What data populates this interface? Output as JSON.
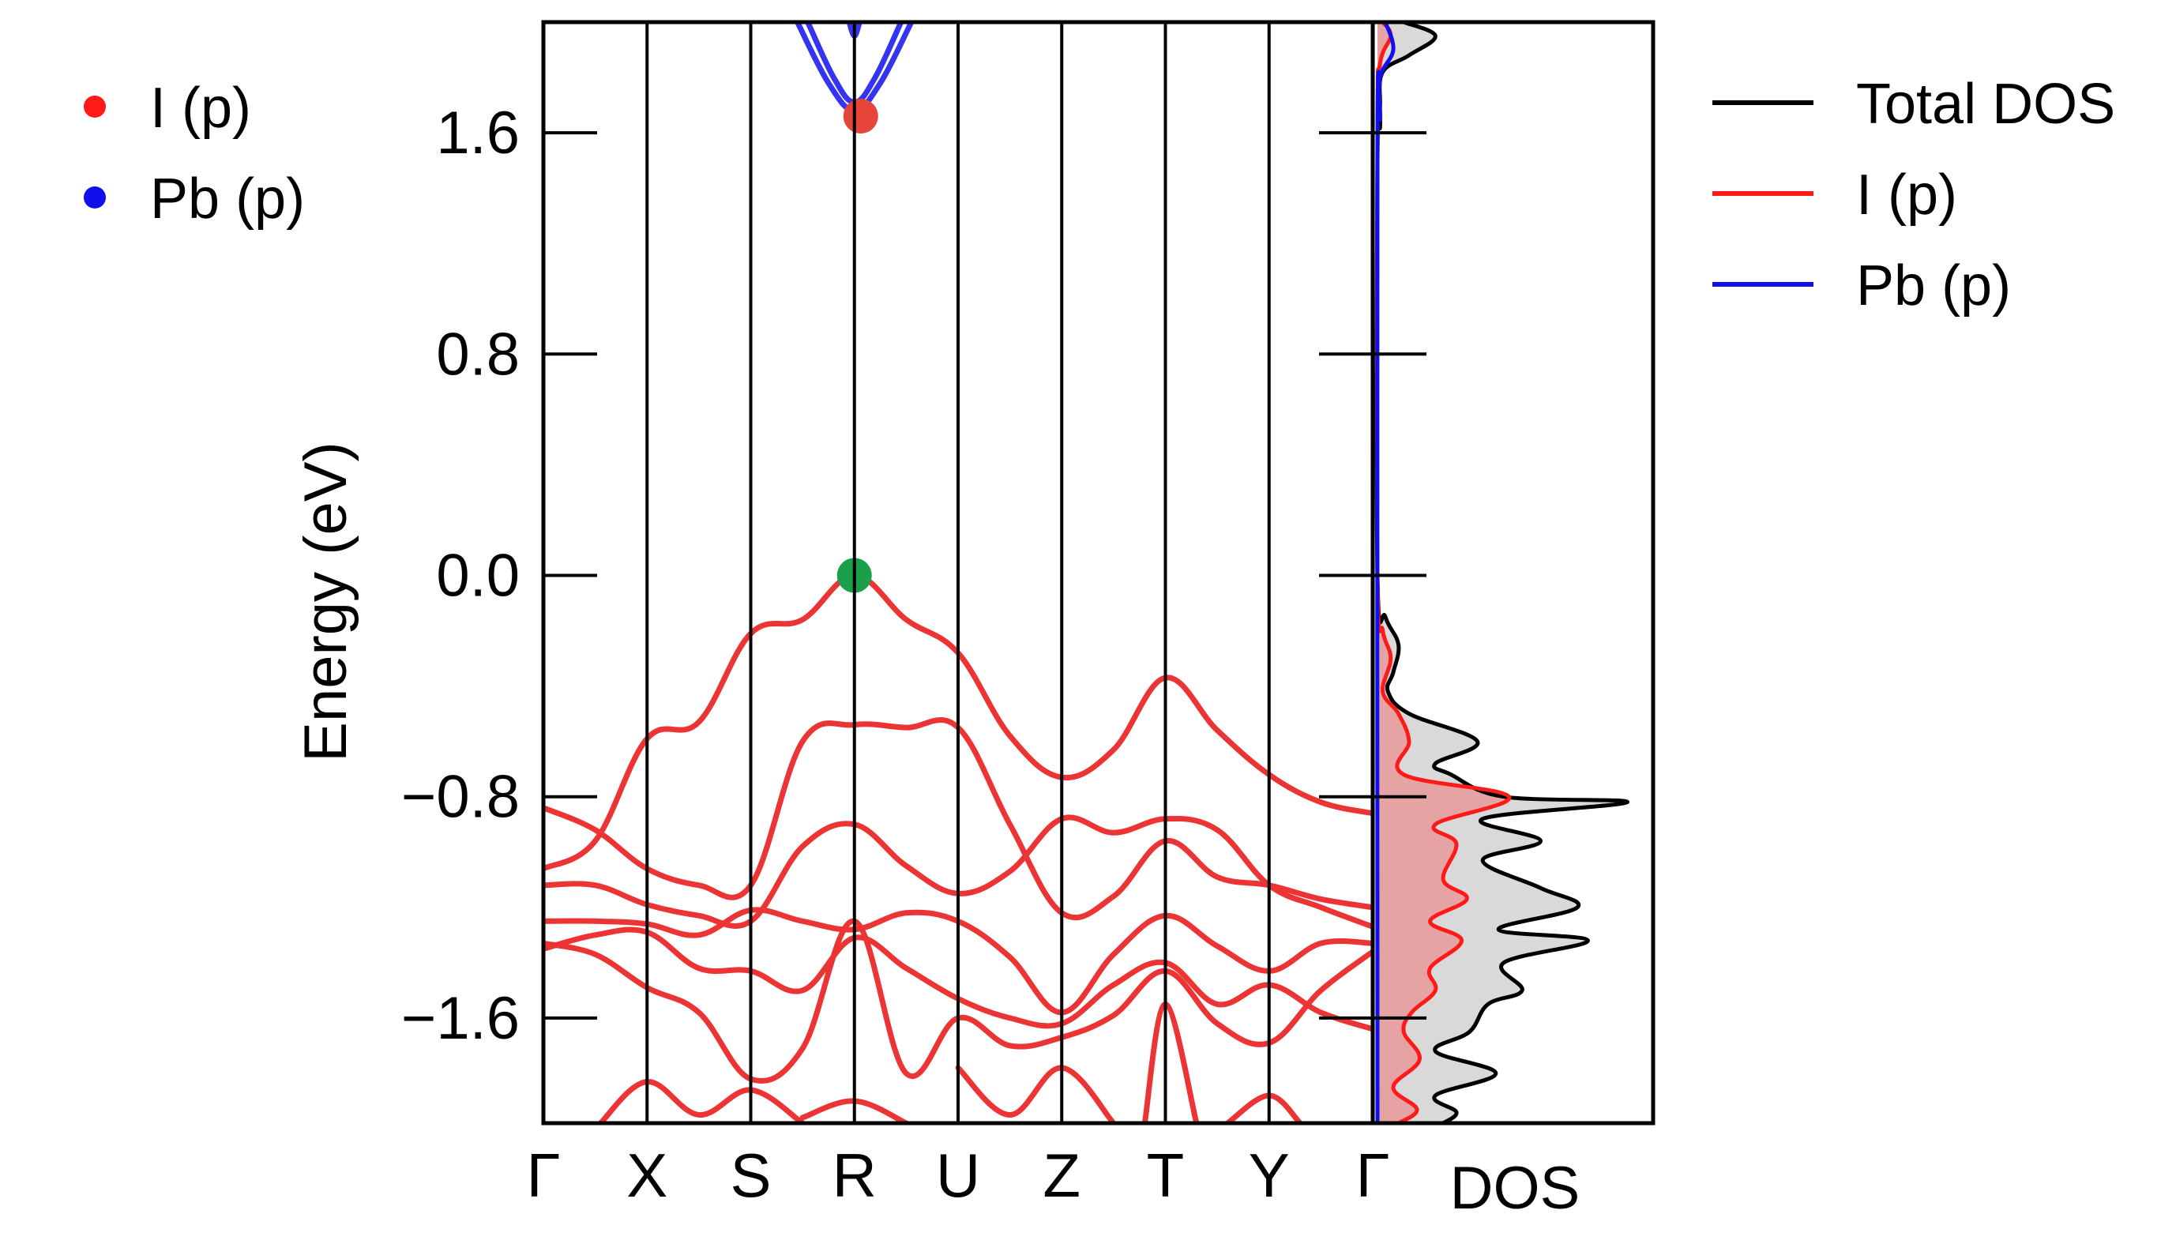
{
  "figure": {
    "ylabel": "Energy (eV)",
    "dos_label": "DOS"
  },
  "colors": {
    "i_p": "#ff1a1a",
    "pb_p": "#1010ee",
    "total": "#000000",
    "vbm_marker": "#1aa04a",
    "cbm_marker": "#e8453a",
    "band_line": "#ec3434",
    "total_fill": "#d9d9d9",
    "ip_fill": "#e6a3a3"
  },
  "chart_data": [
    {
      "type": "line",
      "name": "band-structure",
      "ylabel": "Energy (eV)",
      "ylim": [
        -1.98,
        2.0
      ],
      "yticks": [
        1.6,
        0.8,
        0.0,
        -0.8,
        -1.6
      ],
      "ytick_labels": [
        "1.6",
        "0.8",
        "0.0",
        "−0.8",
        "−1.6"
      ],
      "kpath": [
        "Γ",
        "X",
        "S",
        "R",
        "U",
        "Z",
        "T",
        "Y",
        "Γ"
      ],
      "legend": [
        {
          "label": "I (p)",
          "color": "#ff1a1a"
        },
        {
          "label": "Pb (p)",
          "color": "#1010ee"
        }
      ],
      "legend_position": "upper-left outside",
      "markers": [
        {
          "k": "R",
          "energy": 0.0,
          "color": "#1aa04a",
          "label": "VBM"
        },
        {
          "k": "R",
          "energy": 1.66,
          "color": "#e8453a",
          "label": "CBM"
        }
      ],
      "valence_bands": [
        [
          [
            0,
            -1.06
          ],
          [
            0.5,
            -0.96
          ],
          [
            1,
            -0.59
          ],
          [
            1.5,
            -0.53
          ],
          [
            2,
            -0.21
          ],
          [
            2.5,
            -0.16
          ],
          [
            3,
            0.0
          ],
          [
            3.5,
            -0.16
          ],
          [
            4,
            -0.28
          ],
          [
            4.5,
            -0.58
          ],
          [
            5,
            -0.73
          ],
          [
            5.5,
            -0.63
          ],
          [
            6,
            -0.37
          ],
          [
            6.5,
            -0.56
          ],
          [
            7,
            -0.72
          ],
          [
            7.5,
            -0.82
          ],
          [
            8,
            -0.86
          ]
        ],
        [
          [
            0,
            -0.84
          ],
          [
            0.5,
            -0.92
          ],
          [
            1,
            -1.06
          ],
          [
            1.5,
            -1.12
          ],
          [
            2,
            -1.12
          ],
          [
            2.5,
            -0.6
          ],
          [
            3,
            -0.54
          ],
          [
            3.5,
            -0.55
          ],
          [
            4,
            -0.55
          ],
          [
            4.5,
            -0.9
          ],
          [
            5,
            -1.22
          ],
          [
            5.5,
            -1.16
          ],
          [
            6,
            -0.96
          ],
          [
            6.5,
            -1.09
          ],
          [
            7,
            -1.12
          ],
          [
            7.5,
            -1.17
          ],
          [
            8,
            -1.2
          ]
        ],
        [
          [
            0,
            -1.12
          ],
          [
            0.5,
            -1.12
          ],
          [
            1,
            -1.19
          ],
          [
            1.5,
            -1.23
          ],
          [
            2,
            -1.25
          ],
          [
            2.5,
            -0.98
          ],
          [
            3,
            -0.9
          ],
          [
            3.5,
            -1.05
          ],
          [
            4,
            -1.15
          ],
          [
            4.5,
            -1.07
          ],
          [
            5,
            -0.88
          ],
          [
            5.5,
            -0.93
          ],
          [
            6,
            -0.88
          ],
          [
            6.5,
            -0.92
          ],
          [
            7,
            -1.12
          ],
          [
            7.5,
            -1.2
          ],
          [
            8,
            -1.27
          ]
        ],
        [
          [
            0,
            -1.25
          ],
          [
            0.5,
            -1.25
          ],
          [
            1,
            -1.26
          ],
          [
            1.5,
            -1.3
          ],
          [
            2,
            -1.21
          ],
          [
            2.5,
            -1.25
          ],
          [
            3,
            -1.28
          ],
          [
            3.5,
            -1.22
          ],
          [
            4,
            -1.25
          ],
          [
            4.5,
            -1.38
          ],
          [
            5,
            -1.58
          ],
          [
            5.5,
            -1.37
          ],
          [
            6,
            -1.23
          ],
          [
            6.5,
            -1.34
          ],
          [
            7,
            -1.43
          ],
          [
            7.5,
            -1.33
          ],
          [
            8,
            -1.33
          ]
        ],
        [
          [
            0,
            -1.35
          ],
          [
            0.5,
            -1.3
          ],
          [
            1,
            -1.29
          ],
          [
            1.5,
            -1.42
          ],
          [
            2,
            -1.43
          ],
          [
            2.5,
            -1.5
          ],
          [
            3,
            -1.31
          ],
          [
            3.5,
            -1.42
          ],
          [
            4,
            -1.53
          ],
          [
            4.5,
            -1.6
          ],
          [
            5,
            -1.62
          ],
          [
            5.5,
            -1.48
          ],
          [
            6,
            -1.4
          ],
          [
            6.5,
            -1.55
          ],
          [
            7,
            -1.48
          ],
          [
            7.5,
            -1.58
          ],
          [
            8,
            -1.64
          ]
        ],
        [
          [
            0,
            -1.33
          ],
          [
            0.5,
            -1.37
          ],
          [
            1,
            -1.49
          ],
          [
            1.5,
            -1.58
          ],
          [
            2,
            -1.82
          ],
          [
            2.5,
            -1.71
          ],
          [
            3,
            -1.25
          ],
          [
            3.5,
            -1.8
          ],
          [
            4,
            -1.6
          ],
          [
            4.5,
            -1.7
          ],
          [
            5,
            -1.67
          ],
          [
            5.5,
            -1.59
          ],
          [
            6,
            -1.43
          ],
          [
            6.5,
            -1.62
          ],
          [
            7,
            -1.69
          ],
          [
            7.5,
            -1.5
          ],
          [
            8,
            -1.36
          ]
        ],
        [
          [
            0.55,
            -1.98
          ],
          [
            1,
            -1.83
          ],
          [
            1.5,
            -1.95
          ],
          [
            2,
            -1.86
          ],
          [
            2.5,
            -1.98
          ]
        ],
        [
          [
            2.5,
            -1.96
          ],
          [
            3,
            -1.9
          ],
          [
            3.5,
            -1.98
          ]
        ],
        [
          [
            4,
            -1.78
          ],
          [
            4.5,
            -1.95
          ],
          [
            5,
            -1.78
          ],
          [
            5.5,
            -1.98
          ]
        ],
        [
          [
            5.8,
            -1.98
          ],
          [
            6,
            -1.55
          ],
          [
            6.3,
            -1.98
          ]
        ],
        [
          [
            6.6,
            -1.98
          ],
          [
            7,
            -1.88
          ],
          [
            7.3,
            -1.98
          ]
        ]
      ],
      "conduction_bands": [
        [
          [
            2.45,
            2.0
          ],
          [
            2.75,
            1.78
          ],
          [
            3,
            1.68
          ],
          [
            3.25,
            1.78
          ],
          [
            3.55,
            2.0
          ]
        ],
        [
          [
            2.55,
            2.0
          ],
          [
            2.8,
            1.8
          ],
          [
            3,
            1.71
          ],
          [
            3.2,
            1.8
          ],
          [
            3.45,
            2.0
          ]
        ],
        [
          [
            2.95,
            2.0
          ],
          [
            3,
            1.95
          ],
          [
            3.05,
            2.0
          ]
        ]
      ]
    },
    {
      "type": "area",
      "name": "density-of-states",
      "xlabel": "DOS",
      "ylim": [
        -1.98,
        2.0
      ],
      "xlim": [
        0,
        1
      ],
      "legend": [
        {
          "label": "Total DOS",
          "color": "#000000"
        },
        {
          "label": "I (p)",
          "color": "#ff1a1a"
        },
        {
          "label": "Pb (p)",
          "color": "#1010ee"
        }
      ],
      "legend_position": "upper-right outside",
      "total_dos": [
        [
          2.0,
          0.1
        ],
        [
          1.95,
          0.22
        ],
        [
          1.88,
          0.12
        ],
        [
          1.82,
          0.02
        ],
        [
          1.7,
          0.01
        ],
        [
          1.62,
          0.01
        ],
        [
          1.5,
          0.0
        ],
        [
          0.0,
          0.0
        ],
        [
          -0.15,
          0.03
        ],
        [
          -0.25,
          0.08
        ],
        [
          -0.35,
          0.06
        ],
        [
          -0.42,
          0.04
        ],
        [
          -0.5,
          0.12
        ],
        [
          -0.6,
          0.38
        ],
        [
          -0.68,
          0.22
        ],
        [
          -0.72,
          0.28
        ],
        [
          -0.8,
          0.48
        ],
        [
          -0.82,
          0.95
        ],
        [
          -0.88,
          0.4
        ],
        [
          -0.96,
          0.62
        ],
        [
          -1.03,
          0.4
        ],
        [
          -1.13,
          0.62
        ],
        [
          -1.2,
          0.76
        ],
        [
          -1.28,
          0.46
        ],
        [
          -1.32,
          0.8
        ],
        [
          -1.4,
          0.48
        ],
        [
          -1.5,
          0.55
        ],
        [
          -1.55,
          0.42
        ],
        [
          -1.65,
          0.35
        ],
        [
          -1.72,
          0.22
        ],
        [
          -1.8,
          0.45
        ],
        [
          -1.88,
          0.22
        ],
        [
          -1.94,
          0.3
        ],
        [
          -1.98,
          0.25
        ]
      ],
      "ip_dos": [
        [
          2.0,
          0.02
        ],
        [
          1.95,
          0.05
        ],
        [
          1.85,
          0.01
        ],
        [
          1.6,
          0.0
        ],
        [
          0.0,
          0.0
        ],
        [
          -0.2,
          0.02
        ],
        [
          -0.3,
          0.05
        ],
        [
          -0.42,
          0.02
        ],
        [
          -0.5,
          0.08
        ],
        [
          -0.6,
          0.12
        ],
        [
          -0.72,
          0.1
        ],
        [
          -0.8,
          0.5
        ],
        [
          -0.9,
          0.22
        ],
        [
          -0.97,
          0.3
        ],
        [
          -1.1,
          0.25
        ],
        [
          -1.17,
          0.34
        ],
        [
          -1.25,
          0.2
        ],
        [
          -1.32,
          0.32
        ],
        [
          -1.42,
          0.2
        ],
        [
          -1.5,
          0.22
        ],
        [
          -1.58,
          0.13
        ],
        [
          -1.65,
          0.1
        ],
        [
          -1.75,
          0.16
        ],
        [
          -1.85,
          0.06
        ],
        [
          -1.93,
          0.15
        ],
        [
          -1.98,
          0.08
        ]
      ],
      "pb_dos": [
        [
          2.0,
          0.03
        ],
        [
          1.9,
          0.06
        ],
        [
          1.8,
          0.01
        ],
        [
          1.65,
          0.01
        ],
        [
          1.5,
          0.0
        ],
        [
          -1.98,
          0.0
        ]
      ]
    }
  ]
}
